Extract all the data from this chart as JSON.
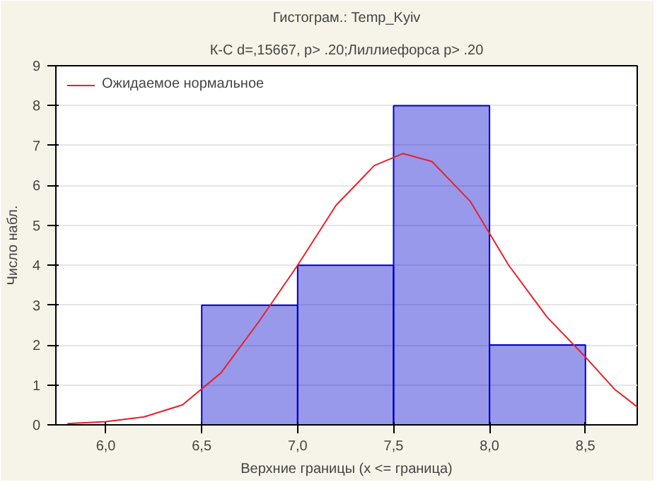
{
  "chart_data": {
    "type": "histogram",
    "title": "Гистограм.: Temp_Kyiv",
    "subtitle": "К-С d=,15667, p> .20;Лиллиефорса p> .20",
    "xlabel": "Верхние границы (x <= граница)",
    "ylabel": "Число набл.",
    "bins": [
      6.5,
      7.0,
      7.5,
      8.0,
      8.5
    ],
    "values": [
      3,
      4,
      8,
      2
    ],
    "color": "#0000cc",
    "series": [
      {
        "type": "line",
        "name": "Ожидаемое нормальное",
        "color": "#e8202a",
        "x": [
          5.8,
          6.0,
          6.2,
          6.4,
          6.6,
          6.8,
          7.0,
          7.2,
          7.4,
          7.55,
          7.7,
          7.9,
          8.1,
          8.3,
          8.5,
          8.65,
          8.77
        ],
        "values": [
          0.03,
          0.08,
          0.2,
          0.5,
          1.3,
          2.6,
          4.0,
          5.5,
          6.5,
          6.8,
          6.6,
          5.6,
          4.0,
          2.7,
          1.7,
          0.9,
          0.45
        ]
      }
    ],
    "xlim": [
      5.74,
      8.77
    ],
    "xticks": [
      {
        "value": 6.0,
        "label": "6,0"
      },
      {
        "value": 6.5,
        "label": "6,5"
      },
      {
        "value": 7.0,
        "label": "7,0"
      },
      {
        "value": 7.5,
        "label": "7,5"
      },
      {
        "value": 8.0,
        "label": "8,0"
      },
      {
        "value": 8.5,
        "label": "8,5"
      }
    ],
    "ylim": [
      0,
      9
    ],
    "yticks": [
      0,
      1,
      2,
      3,
      4,
      5,
      6,
      7,
      8,
      9
    ],
    "grid": "y",
    "legend": "top left"
  }
}
